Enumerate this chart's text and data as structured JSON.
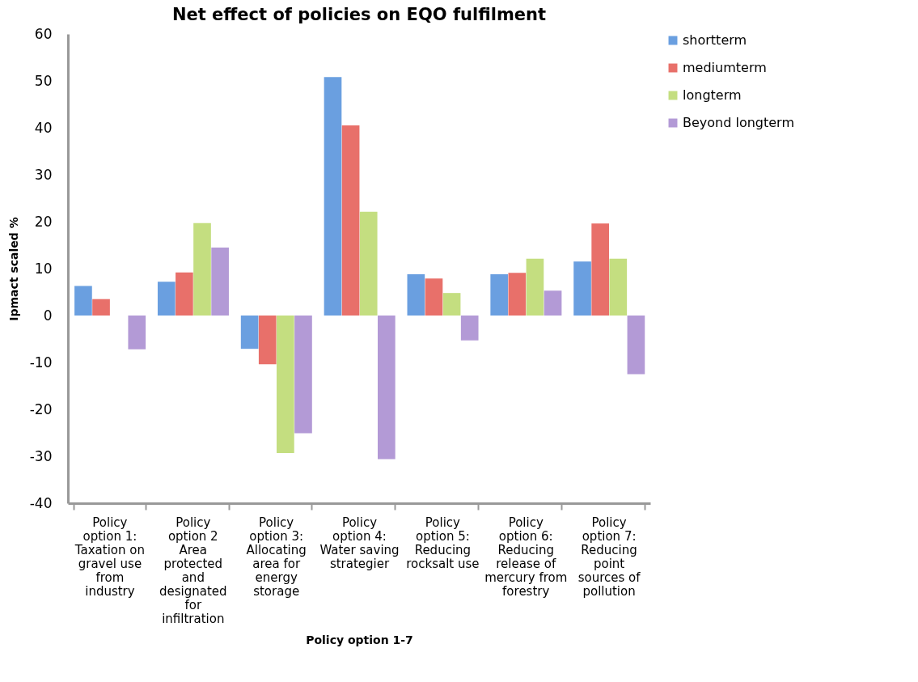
{
  "chart_data": {
    "type": "bar",
    "title": "Net effect of policies on EQO fulfilment",
    "xlabel": "Policy option 1-7",
    "ylabel": "Ipmact scaled %",
    "categories": [
      "Policy option 1: Taxation on gravel use from industry",
      "Policy option 2 Area protected and designated for infiltration",
      "Policy option 3: Allocating area for energy storage",
      "Policy option 4: Water saving strategier",
      "Policy option 5: Reducing rocksalt use",
      "Policy option 6: Reducing release of mercury from forestry",
      "Policy option 7: Reducing point sources of pollution"
    ],
    "series": [
      {
        "name": "shortterm",
        "color": "#6a9fe0",
        "values": [
          6.3,
          7.2,
          -7.1,
          50.8,
          8.8,
          8.8,
          11.5
        ]
      },
      {
        "name": "mediumterm",
        "color": "#e8706a",
        "values": [
          3.5,
          9.2,
          -10.4,
          40.5,
          7.9,
          9.1,
          19.6
        ]
      },
      {
        "name": "longterm",
        "color": "#c4de80",
        "values": [
          0,
          19.7,
          -29.3,
          22.1,
          4.8,
          12.1,
          12.1
        ]
      },
      {
        "name": "Beyond longterm",
        "color": "#b39ad6",
        "values": [
          -7.2,
          14.5,
          -25.1,
          -30.6,
          -5.3,
          5.3,
          -12.5
        ]
      }
    ],
    "ylim": [
      -40,
      60
    ],
    "yticks": [
      -40,
      -30,
      -20,
      -10,
      0,
      10,
      20,
      30,
      40,
      50,
      60
    ],
    "grid": false,
    "legend": "right"
  }
}
